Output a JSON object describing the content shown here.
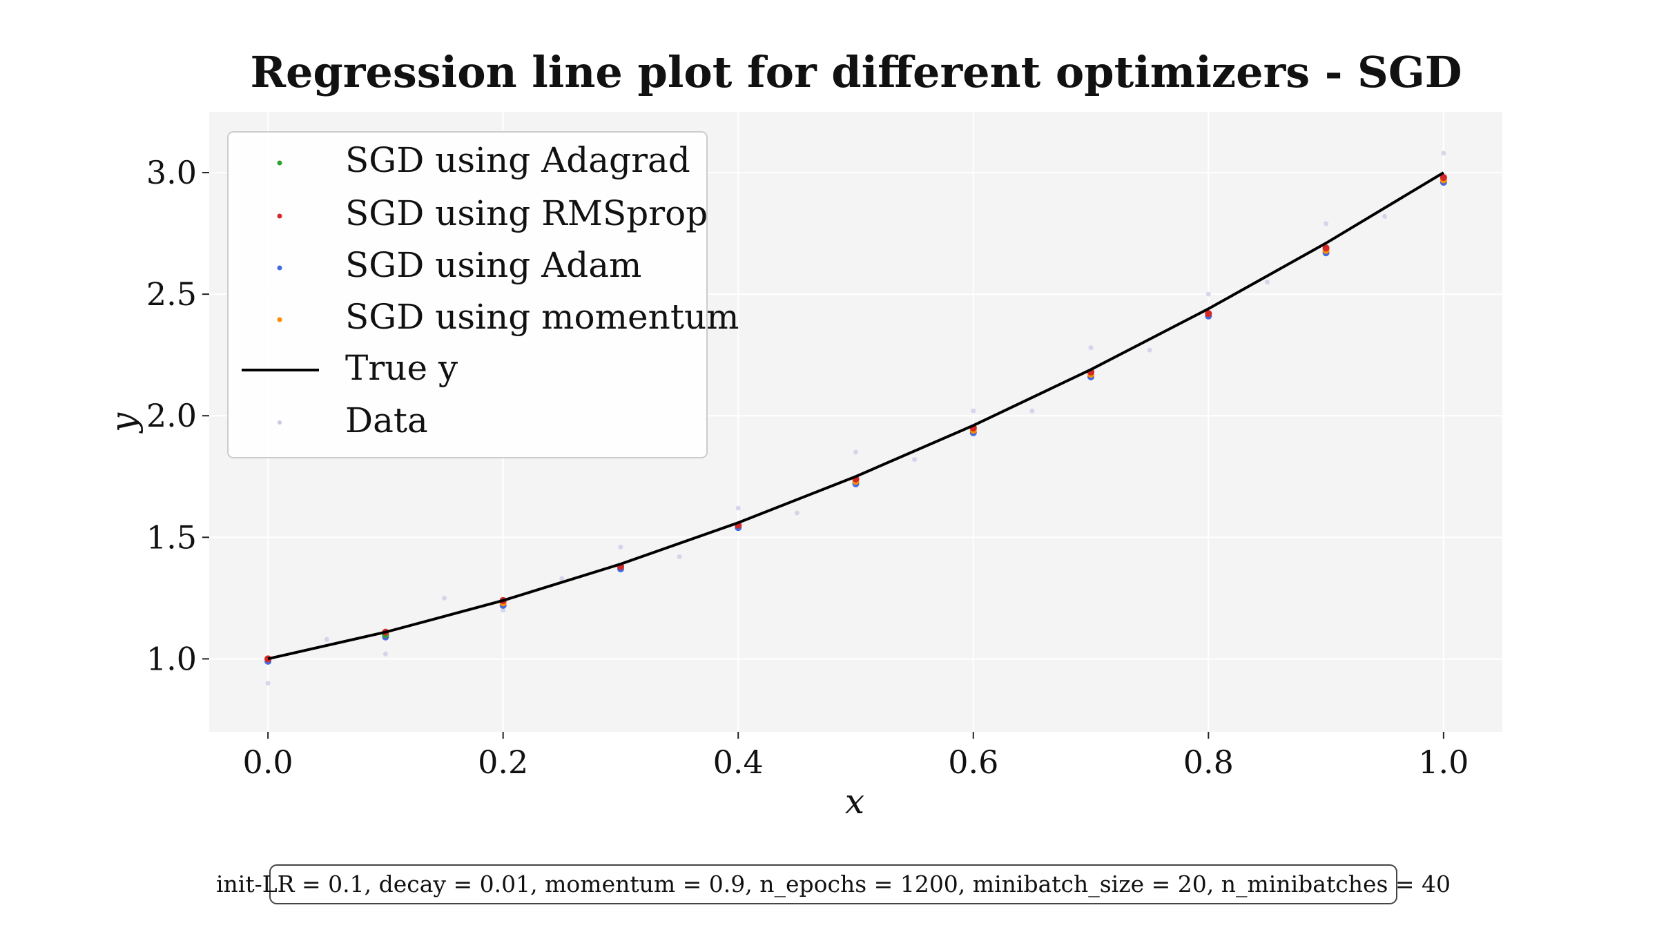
{
  "chart_data": {
    "type": "scatter",
    "title": "Regression line plot for different optimizers - SGD",
    "xlabel": "x",
    "ylabel": "y",
    "xlim": [
      -0.05,
      1.05
    ],
    "ylim": [
      0.7,
      3.25
    ],
    "x_ticks": [
      "0.0",
      "0.2",
      "0.4",
      "0.6",
      "0.8",
      "1.0"
    ],
    "y_ticks": [
      "1.0",
      "1.5",
      "2.0",
      "2.5",
      "3.0"
    ],
    "grid": true,
    "legend_position": "upper-left",
    "true_function": "y = 1 + x + x^2",
    "series": [
      {
        "name": "SGD using Adagrad",
        "color": "#2ca02c",
        "kind": "points",
        "x": [
          0.0,
          0.1,
          0.2,
          0.3,
          0.4,
          0.5,
          0.6,
          0.7,
          0.8,
          0.9,
          1.0
        ],
        "y": [
          1.0,
          1.1,
          1.24,
          1.38,
          1.55,
          1.74,
          1.95,
          2.18,
          2.42,
          2.69,
          2.98
        ]
      },
      {
        "name": "SGD using RMSprop",
        "color": "#d62728",
        "kind": "points",
        "x": [
          0.0,
          0.1,
          0.2,
          0.3,
          0.4,
          0.5,
          0.6,
          0.7,
          0.8,
          0.9,
          1.0
        ],
        "y": [
          1.0,
          1.11,
          1.24,
          1.38,
          1.55,
          1.74,
          1.95,
          2.18,
          2.42,
          2.69,
          2.98
        ]
      },
      {
        "name": "SGD using Adam",
        "color": "#4169e1",
        "kind": "points",
        "x": [
          0.0,
          0.1,
          0.2,
          0.3,
          0.4,
          0.5,
          0.6,
          0.7,
          0.8,
          0.9,
          1.0
        ],
        "y": [
          0.99,
          1.09,
          1.22,
          1.37,
          1.54,
          1.72,
          1.93,
          2.16,
          2.41,
          2.67,
          2.96
        ]
      },
      {
        "name": "SGD using momentum",
        "color": "#ff8c00",
        "kind": "points",
        "x": [
          0.0,
          0.1,
          0.2,
          0.3,
          0.4,
          0.5,
          0.6,
          0.7,
          0.8,
          0.9,
          1.0
        ],
        "y": [
          1.0,
          1.1,
          1.23,
          1.38,
          1.55,
          1.73,
          1.94,
          2.17,
          2.42,
          2.68,
          2.97
        ]
      },
      {
        "name": "True y",
        "color": "#000000",
        "kind": "line",
        "x": [
          0.0,
          0.1,
          0.2,
          0.3,
          0.4,
          0.5,
          0.6,
          0.7,
          0.8,
          0.9,
          1.0
        ],
        "y": [
          1.0,
          1.11,
          1.24,
          1.39,
          1.56,
          1.75,
          1.96,
          2.19,
          2.44,
          2.71,
          3.0
        ]
      },
      {
        "name": "Data",
        "color": "#c8c8e6",
        "kind": "scatter",
        "x": [
          0.0,
          0.05,
          0.1,
          0.15,
          0.2,
          0.25,
          0.3,
          0.35,
          0.4,
          0.45,
          0.5,
          0.55,
          0.6,
          0.65,
          0.7,
          0.75,
          0.8,
          0.85,
          0.9,
          0.95,
          1.0
        ],
        "y": [
          0.9,
          1.08,
          1.02,
          1.25,
          1.2,
          1.33,
          1.46,
          1.42,
          1.62,
          1.6,
          1.85,
          1.82,
          2.02,
          2.02,
          2.28,
          2.27,
          2.5,
          2.55,
          2.79,
          2.82,
          3.08
        ]
      }
    ]
  },
  "footnote": "init-LR = 0.1, decay = 0.01, momentum = 0.9, n_epochs = 1200, minibatch_size = 20, n_minibatches = 40"
}
